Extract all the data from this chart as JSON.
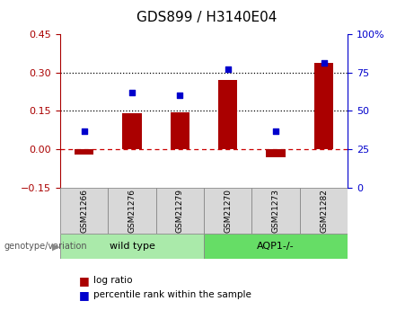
{
  "title": "GDS899 / H3140E04",
  "samples": [
    "GSM21266",
    "GSM21276",
    "GSM21279",
    "GSM21270",
    "GSM21273",
    "GSM21282"
  ],
  "log_ratios": [
    -0.022,
    0.142,
    0.145,
    0.272,
    -0.03,
    0.338
  ],
  "percentile_ranks_pct": [
    37,
    62,
    60,
    77,
    37,
    81
  ],
  "groups": [
    {
      "label": "wild type",
      "start": 0,
      "end": 3,
      "color": "#AAEAAA"
    },
    {
      "label": "AQP1-/-",
      "start": 3,
      "end": 6,
      "color": "#66DD66"
    }
  ],
  "left_ylim": [
    -0.15,
    0.45
  ],
  "right_ylim": [
    0,
    100
  ],
  "left_yticks": [
    -0.15,
    0.0,
    0.15,
    0.3,
    0.45
  ],
  "right_yticks": [
    0,
    25,
    50,
    75,
    100
  ],
  "right_yticklabels": [
    "0",
    "25",
    "50",
    "75",
    "100%"
  ],
  "hlines": [
    0.15,
    0.3
  ],
  "bar_color": "#AA0000",
  "scatter_color": "#0000CC",
  "zero_line_color": "#CC0000",
  "sample_bg_color": "#D8D8D8",
  "plot_bg": "#FFFFFF",
  "legend_items": [
    "log ratio",
    "percentile rank within the sample"
  ],
  "genotype_label": "genotype/variation",
  "title_fontsize": 11,
  "tick_fontsize": 8,
  "sample_fontsize": 6.5,
  "group_fontsize": 8,
  "legend_fontsize": 7.5
}
